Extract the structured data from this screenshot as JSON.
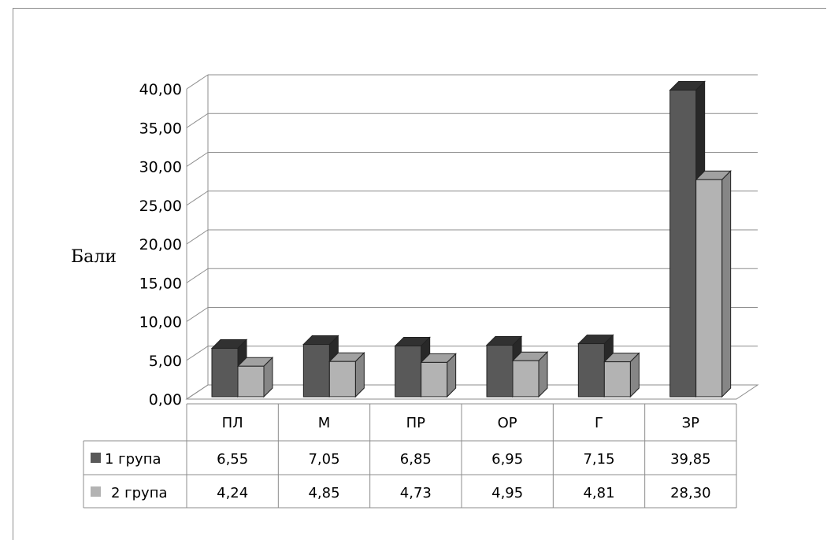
{
  "chart_data": {
    "type": "bar",
    "title": "",
    "xlabel": "",
    "ylabel": "Бали",
    "ylim": [
      0,
      40
    ],
    "ytick_step": 5,
    "ytick_labels": [
      "0,00",
      "5,00",
      "10,00",
      "15,00",
      "20,00",
      "25,00",
      "30,00",
      "35,00",
      "40,00"
    ],
    "grid": true,
    "style": "3d-clustered-column",
    "categories": [
      "ПЛ",
      "М",
      "ПР",
      "ОР",
      "Г",
      "ЗР"
    ],
    "series": [
      {
        "name": "1 група",
        "values": [
          6.55,
          7.05,
          6.85,
          6.95,
          7.15,
          39.85
        ],
        "labels": [
          "6,55",
          "7,05",
          "6,85",
          "6,95",
          "7,15",
          "39,85"
        ],
        "color": "#595959"
      },
      {
        "name": "2 група",
        "values": [
          4.24,
          4.85,
          4.73,
          4.95,
          4.81,
          28.3
        ],
        "labels": [
          "4,24",
          "4,85",
          "4,73",
          "4,95",
          "4,81",
          "28,30"
        ],
        "color": "#b3b3b3"
      }
    ],
    "data_table": true
  }
}
